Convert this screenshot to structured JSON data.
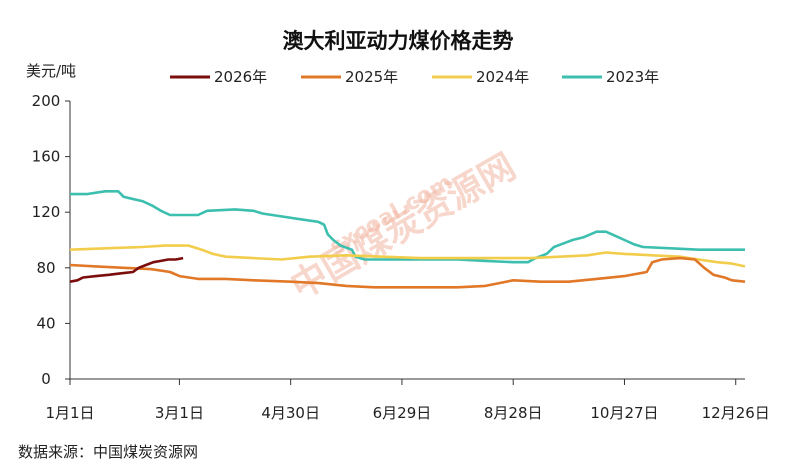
{
  "chart_data": {
    "type": "line",
    "title": "澳大利亚动力煤价格走势",
    "ylabel": "美元/吨",
    "xlabel": "",
    "ylim": [
      0,
      200
    ],
    "yticks": [
      0,
      40,
      80,
      120,
      160,
      200
    ],
    "xlim": [
      1,
      365
    ],
    "x_ticks": [
      {
        "label": "1月1日",
        "day": 1
      },
      {
        "label": "3月1日",
        "day": 60
      },
      {
        "label": "4月30日",
        "day": 120
      },
      {
        "label": "6月29日",
        "day": 180
      },
      {
        "label": "8月28日",
        "day": 240
      },
      {
        "label": "10月27日",
        "day": 300
      },
      {
        "label": "12月26日",
        "day": 360
      }
    ],
    "grid": false,
    "legend": "top",
    "x_unit": "day of year",
    "series": [
      {
        "name": "2026年",
        "color": "#7b0d0d",
        "points": [
          [
            1,
            70
          ],
          [
            5,
            71
          ],
          [
            8,
            73
          ],
          [
            15,
            74
          ],
          [
            22,
            75
          ],
          [
            28,
            76
          ],
          [
            35,
            77
          ],
          [
            38,
            80
          ],
          [
            42,
            82
          ],
          [
            46,
            84
          ],
          [
            50,
            85
          ],
          [
            54,
            86
          ],
          [
            58,
            86
          ],
          [
            62,
            87
          ]
        ]
      },
      {
        "name": "2025年",
        "color": "#e07828",
        "points": [
          [
            1,
            82
          ],
          [
            15,
            81
          ],
          [
            30,
            80
          ],
          [
            45,
            79
          ],
          [
            55,
            77
          ],
          [
            60,
            74
          ],
          [
            70,
            72
          ],
          [
            85,
            72
          ],
          [
            100,
            71
          ],
          [
            120,
            70
          ],
          [
            135,
            69
          ],
          [
            150,
            67
          ],
          [
            165,
            66
          ],
          [
            180,
            66
          ],
          [
            195,
            66
          ],
          [
            210,
            66
          ],
          [
            225,
            67
          ],
          [
            240,
            71
          ],
          [
            255,
            70
          ],
          [
            270,
            70
          ],
          [
            285,
            72
          ],
          [
            300,
            74
          ],
          [
            312,
            77
          ],
          [
            315,
            84
          ],
          [
            320,
            86
          ],
          [
            330,
            87
          ],
          [
            338,
            86
          ],
          [
            343,
            80
          ],
          [
            348,
            75
          ],
          [
            354,
            73
          ],
          [
            358,
            71
          ],
          [
            365,
            70
          ]
        ]
      },
      {
        "name": "2024年",
        "color": "#f2cd4c",
        "points": [
          [
            1,
            93
          ],
          [
            20,
            94
          ],
          [
            40,
            95
          ],
          [
            52,
            96
          ],
          [
            65,
            96
          ],
          [
            72,
            93
          ],
          [
            78,
            90
          ],
          [
            85,
            88
          ],
          [
            100,
            87
          ],
          [
            115,
            86
          ],
          [
            130,
            88
          ],
          [
            150,
            89
          ],
          [
            170,
            88
          ],
          [
            190,
            87
          ],
          [
            210,
            87
          ],
          [
            230,
            87
          ],
          [
            250,
            87
          ],
          [
            265,
            88
          ],
          [
            280,
            89
          ],
          [
            290,
            91
          ],
          [
            300,
            90
          ],
          [
            315,
            89
          ],
          [
            330,
            88
          ],
          [
            340,
            86
          ],
          [
            350,
            84
          ],
          [
            358,
            83
          ],
          [
            365,
            81
          ]
        ]
      },
      {
        "name": "2023年",
        "color": "#3cbfae",
        "points": [
          [
            1,
            133
          ],
          [
            10,
            133
          ],
          [
            15,
            134
          ],
          [
            20,
            135
          ],
          [
            27,
            135
          ],
          [
            30,
            131
          ],
          [
            40,
            128
          ],
          [
            45,
            125
          ],
          [
            50,
            121
          ],
          [
            55,
            118
          ],
          [
            70,
            118
          ],
          [
            75,
            121
          ],
          [
            90,
            122
          ],
          [
            100,
            121
          ],
          [
            105,
            119
          ],
          [
            115,
            117
          ],
          [
            125,
            115
          ],
          [
            135,
            113
          ],
          [
            138,
            111
          ],
          [
            140,
            104
          ],
          [
            143,
            100
          ],
          [
            147,
            96
          ],
          [
            153,
            93
          ],
          [
            155,
            88
          ],
          [
            160,
            86
          ],
          [
            170,
            86
          ],
          [
            180,
            86
          ],
          [
            195,
            86
          ],
          [
            210,
            86
          ],
          [
            225,
            85
          ],
          [
            240,
            84
          ],
          [
            248,
            84
          ],
          [
            252,
            87
          ],
          [
            258,
            90
          ],
          [
            262,
            95
          ],
          [
            268,
            98
          ],
          [
            272,
            100
          ],
          [
            278,
            102
          ],
          [
            285,
            106
          ],
          [
            290,
            106
          ],
          [
            295,
            103
          ],
          [
            300,
            100
          ],
          [
            305,
            97
          ],
          [
            310,
            95
          ],
          [
            325,
            94
          ],
          [
            340,
            93
          ],
          [
            355,
            93
          ],
          [
            365,
            93
          ]
        ]
      }
    ],
    "source": "数据来源：中国煤炭资源网",
    "watermark": "中国煤炭资源网",
    "watermark_url": "sxcoal.com"
  }
}
